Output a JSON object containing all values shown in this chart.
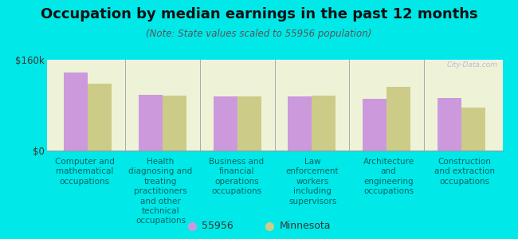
{
  "title": "Occupation by median earnings in the past 12 months",
  "subtitle": "(Note: State values scaled to 55956 population)",
  "background_outer": "#00e8e8",
  "background_plot": "#eef3d8",
  "categories": [
    "Computer and\nmathematical\noccupations",
    "Health\ndiagnosing and\ntreating\npractitioners\nand other\ntechnical\noccupations",
    "Business and\nfinancial\noperations\noccupations",
    "Law\nenforcement\nworkers\nincluding\nsupervisors",
    "Architecture\nand\nengineering\noccupations",
    "Construction\nand extraction\noccupations"
  ],
  "values_55956": [
    138000,
    98000,
    96000,
    96000,
    91000,
    92000
  ],
  "values_mn": [
    118000,
    97000,
    96000,
    97000,
    112000,
    76000
  ],
  "color_55956": "#cc99dd",
  "color_mn": "#cccc88",
  "ylim": [
    0,
    160000
  ],
  "ytick_labels": [
    "$0",
    "$160k"
  ],
  "legend_label_55956": "55956",
  "legend_label_mn": "Minnesota",
  "ylabel_fontsize": 8.5,
  "title_fontsize": 13,
  "subtitle_fontsize": 8.5,
  "xlabel_fontsize": 7.5,
  "watermark": "City-Data.com",
  "label_color": "#006666"
}
